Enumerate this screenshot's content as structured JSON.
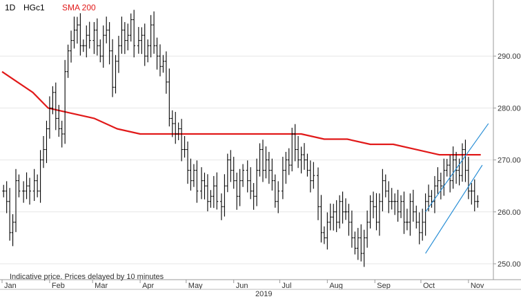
{
  "header": {
    "interval": "1D",
    "symbol": "HGc1",
    "indicator": "SMA 200"
  },
  "footer_note": "Indicative price. Prices delayed by 10 minutes",
  "colors": {
    "price": "#000000",
    "sma": "#e11919",
    "channel": "#2a8fd6",
    "grid": "#e6e6e6",
    "axis_text": "#333333"
  },
  "chart_data": {
    "type": "ohlc",
    "year_label": "2019",
    "xlabels": [
      "Jan",
      "Feb",
      "Mar",
      "Apr",
      "May",
      "Jun",
      "Jul",
      "Aug",
      "Sep",
      "Oct",
      "Nov"
    ],
    "x_range_days": [
      0,
      318
    ],
    "month_start_days": [
      0,
      31,
      59,
      90,
      120,
      151,
      181,
      212,
      243,
      273,
      304
    ],
    "yticks": [
      250,
      260,
      270,
      280,
      290
    ],
    "ytick_labels": [
      "250.00",
      "260.00",
      "270.00",
      "280.00",
      "290.00"
    ],
    "ylim": [
      248,
      300
    ],
    "grid": true,
    "price_close": [
      [
        1,
        264
      ],
      [
        3,
        262
      ],
      [
        5,
        256
      ],
      [
        7,
        258
      ],
      [
        9,
        266
      ],
      [
        11,
        264
      ],
      [
        14,
        264
      ],
      [
        16,
        265
      ],
      [
        18,
        264
      ],
      [
        21,
        266
      ],
      [
        23,
        264
      ],
      [
        25,
        270
      ],
      [
        27,
        272
      ],
      [
        29,
        276
      ],
      [
        31,
        280
      ],
      [
        33,
        283
      ],
      [
        35,
        278
      ],
      [
        37,
        276
      ],
      [
        39,
        275
      ],
      [
        41,
        287
      ],
      [
        43,
        291
      ],
      [
        45,
        293
      ],
      [
        47,
        295
      ],
      [
        49,
        296
      ],
      [
        51,
        292
      ],
      [
        53,
        292
      ],
      [
        55,
        294
      ],
      [
        57,
        293
      ],
      [
        60,
        295
      ],
      [
        62,
        292
      ],
      [
        64,
        290
      ],
      [
        66,
        294
      ],
      [
        68,
        295
      ],
      [
        70,
        291
      ],
      [
        72,
        284
      ],
      [
        74,
        289
      ],
      [
        76,
        292
      ],
      [
        78,
        295
      ],
      [
        80,
        293
      ],
      [
        82,
        294
      ],
      [
        84,
        297
      ],
      [
        86,
        292
      ],
      [
        89,
        293
      ],
      [
        91,
        294
      ],
      [
        93,
        290
      ],
      [
        95,
        292
      ],
      [
        97,
        296
      ],
      [
        99,
        292
      ],
      [
        101,
        290
      ],
      [
        103,
        288
      ],
      [
        105,
        289
      ],
      [
        107,
        285
      ],
      [
        109,
        278
      ],
      [
        111,
        277
      ],
      [
        113,
        275
      ],
      [
        115,
        276
      ],
      [
        117,
        272
      ],
      [
        119,
        272
      ],
      [
        121,
        268
      ],
      [
        123,
        266
      ],
      [
        125,
        268
      ],
      [
        127,
        264
      ],
      [
        130,
        266
      ],
      [
        132,
        265
      ],
      [
        134,
        262
      ],
      [
        136,
        263
      ],
      [
        138,
        265
      ],
      [
        140,
        262
      ],
      [
        143,
        261
      ],
      [
        145,
        265
      ],
      [
        147,
        270
      ],
      [
        149,
        268
      ],
      [
        151,
        266
      ],
      [
        153,
        263
      ],
      [
        155,
        266
      ],
      [
        157,
        268
      ],
      [
        160,
        266
      ],
      [
        162,
        264
      ],
      [
        164,
        263
      ],
      [
        166,
        268
      ],
      [
        168,
        272
      ],
      [
        170,
        268
      ],
      [
        172,
        270
      ],
      [
        174,
        268
      ],
      [
        176,
        266
      ],
      [
        178,
        262
      ],
      [
        180,
        264
      ],
      [
        183,
        268
      ],
      [
        185,
        270
      ],
      [
        187,
        269
      ],
      [
        189,
        275
      ],
      [
        191,
        272
      ],
      [
        193,
        270
      ],
      [
        195,
        271
      ],
      [
        197,
        270
      ],
      [
        199,
        268
      ],
      [
        201,
        266
      ],
      [
        203,
        267
      ],
      [
        206,
        261
      ],
      [
        208,
        256
      ],
      [
        210,
        255
      ],
      [
        212,
        258
      ],
      [
        214,
        259
      ],
      [
        216,
        260
      ],
      [
        218,
        258
      ],
      [
        220,
        262
      ],
      [
        222,
        260
      ],
      [
        224,
        260
      ],
      [
        226,
        258
      ],
      [
        228,
        255
      ],
      [
        230,
        253
      ],
      [
        232,
        255
      ],
      [
        234,
        252
      ],
      [
        236,
        255
      ],
      [
        238,
        258
      ],
      [
        240,
        262
      ],
      [
        242,
        261
      ],
      [
        244,
        258
      ],
      [
        246,
        262
      ],
      [
        248,
        266
      ],
      [
        250,
        264
      ],
      [
        252,
        262
      ],
      [
        254,
        262
      ],
      [
        256,
        262
      ],
      [
        258,
        260
      ],
      [
        260,
        262
      ],
      [
        262,
        258
      ],
      [
        264,
        258
      ],
      [
        266,
        262
      ],
      [
        268,
        260
      ],
      [
        270,
        258
      ],
      [
        272,
        256
      ],
      [
        274,
        258
      ],
      [
        276,
        262
      ],
      [
        278,
        263
      ],
      [
        280,
        262
      ],
      [
        282,
        265
      ],
      [
        284,
        266
      ],
      [
        286,
        265
      ],
      [
        288,
        268
      ],
      [
        290,
        269
      ],
      [
        292,
        266
      ],
      [
        294,
        270
      ],
      [
        296,
        268
      ],
      [
        298,
        267
      ],
      [
        300,
        272
      ],
      [
        302,
        268
      ],
      [
        304,
        264
      ],
      [
        306,
        264
      ],
      [
        308,
        262
      ],
      [
        310,
        262
      ]
    ],
    "sma_200": [
      [
        0,
        287
      ],
      [
        10,
        285
      ],
      [
        20,
        283
      ],
      [
        30,
        280
      ],
      [
        45,
        279
      ],
      [
        60,
        278
      ],
      [
        75,
        276
      ],
      [
        90,
        275
      ],
      [
        105,
        275
      ],
      [
        120,
        275
      ],
      [
        135,
        275
      ],
      [
        150,
        275
      ],
      [
        165,
        275
      ],
      [
        180,
        275
      ],
      [
        195,
        275
      ],
      [
        210,
        274
      ],
      [
        225,
        274
      ],
      [
        240,
        273
      ],
      [
        255,
        273
      ],
      [
        270,
        272
      ],
      [
        285,
        271
      ],
      [
        295,
        271
      ],
      [
        305,
        271
      ],
      [
        312,
        271
      ]
    ],
    "channel_upper": [
      [
        276,
        260
      ],
      [
        317,
        277
      ]
    ],
    "channel_lower": [
      [
        276,
        252
      ],
      [
        313,
        269
      ]
    ],
    "symbol": "HGc1",
    "indicator": "SMA 200"
  }
}
